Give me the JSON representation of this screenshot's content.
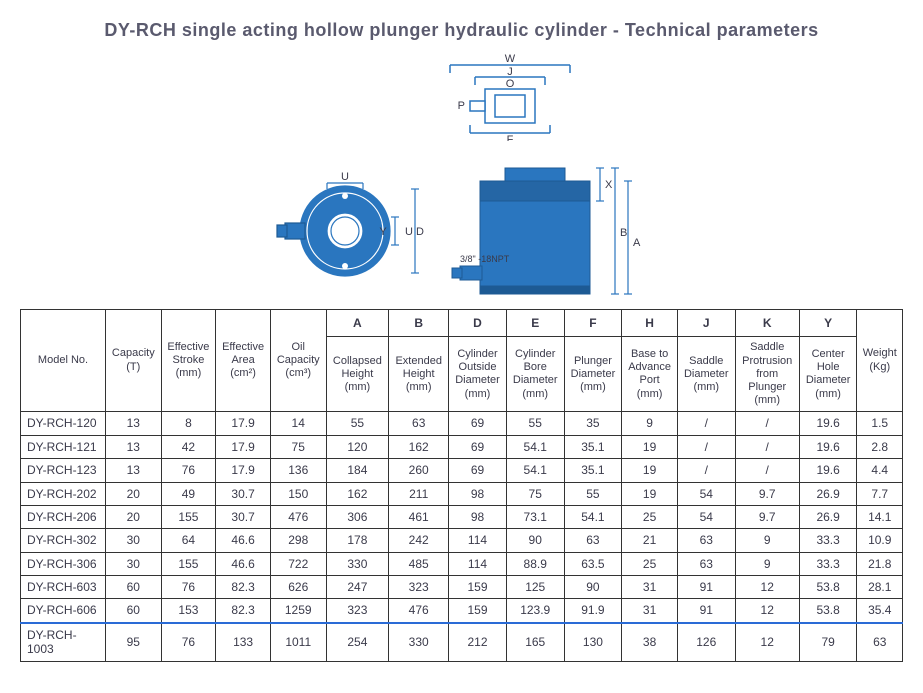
{
  "title": "DY-RCH single acting hollow plunger hydraulic cylinder - Technical parameters",
  "diagram": {
    "body_color": "#2a76bf",
    "line_color": "#2a76bf",
    "dim_color": "#3a3a4a",
    "top_labels": {
      "W": "W",
      "J": "J",
      "O": "O",
      "P": "P"
    },
    "top_F": "F",
    "left_labels": {
      "U": "U",
      "Y": "Y",
      "UD": "U D"
    },
    "port_note": "3/8\" -18NPT",
    "side_labels": {
      "X": "X",
      "B": "B",
      "A": "A"
    }
  },
  "table": {
    "header_letters": [
      "A",
      "B",
      "D",
      "E",
      "F",
      "H",
      "J",
      "K",
      "Y"
    ],
    "cols": {
      "model": "Model No.",
      "capacity": "Capacity\n(T)",
      "stroke": "Effective\nStroke\n(mm)",
      "area": "Effective\nArea\n(cm²)",
      "oil": "Oil\nCapacity\n(cm³)",
      "A": "Collapsed\nHeight\n(mm)",
      "B": "Extended\nHeight\n(mm)",
      "D": "Cylinder\nOutside\nDiameter\n(mm)",
      "E": "Cylinder\nBore\nDiameter\n(mm)",
      "F": "Plunger\nDiameter\n(mm)",
      "H": "Base to\nAdvance\nPort\n(mm)",
      "J": "Saddle\nDiameter\n(mm)",
      "K": "Saddle\nProtrusion\nfrom\nPlunger\n(mm)",
      "Y": "Center\nHole\nDiameter\n(mm)",
      "weight": "Weight\n(Kg)"
    },
    "rows": [
      {
        "model": "DY-RCH-120",
        "cap": "13",
        "stroke": "8",
        "area": "17.9",
        "oil": "14",
        "A": "55",
        "B": "63",
        "D": "69",
        "E": "55",
        "F": "35",
        "H": "9",
        "J": "/",
        "K": "/",
        "Y": "19.6",
        "W": "1.5"
      },
      {
        "model": "DY-RCH-121",
        "cap": "13",
        "stroke": "42",
        "area": "17.9",
        "oil": "75",
        "A": "120",
        "B": "162",
        "D": "69",
        "E": "54.1",
        "F": "35.1",
        "H": "19",
        "J": "/",
        "K": "/",
        "Y": "19.6",
        "W": "2.8"
      },
      {
        "model": "DY-RCH-123",
        "cap": "13",
        "stroke": "76",
        "area": "17.9",
        "oil": "136",
        "A": "184",
        "B": "260",
        "D": "69",
        "E": "54.1",
        "F": "35.1",
        "H": "19",
        "J": "/",
        "K": "/",
        "Y": "19.6",
        "W": "4.4"
      },
      {
        "model": "DY-RCH-202",
        "cap": "20",
        "stroke": "49",
        "area": "30.7",
        "oil": "150",
        "A": "162",
        "B": "211",
        "D": "98",
        "E": "75",
        "F": "55",
        "H": "19",
        "J": "54",
        "K": "9.7",
        "Y": "26.9",
        "W": "7.7"
      },
      {
        "model": "DY-RCH-206",
        "cap": "20",
        "stroke": "155",
        "area": "30.7",
        "oil": "476",
        "A": "306",
        "B": "461",
        "D": "98",
        "E": "73.1",
        "F": "54.1",
        "H": "25",
        "J": "54",
        "K": "9.7",
        "Y": "26.9",
        "W": "14.1"
      },
      {
        "model": "DY-RCH-302",
        "cap": "30",
        "stroke": "64",
        "area": "46.6",
        "oil": "298",
        "A": "178",
        "B": "242",
        "D": "114",
        "E": "90",
        "F": "63",
        "H": "21",
        "J": "63",
        "K": "9",
        "Y": "33.3",
        "W": "10.9"
      },
      {
        "model": "DY-RCH-306",
        "cap": "30",
        "stroke": "155",
        "area": "46.6",
        "oil": "722",
        "A": "330",
        "B": "485",
        "D": "114",
        "E": "88.9",
        "F": "63.5",
        "H": "25",
        "J": "63",
        "K": "9",
        "Y": "33.3",
        "W": "21.8"
      },
      {
        "model": "DY-RCH-603",
        "cap": "60",
        "stroke": "76",
        "area": "82.3",
        "oil": "626",
        "A": "247",
        "B": "323",
        "D": "159",
        "E": "125",
        "F": "90",
        "H": "31",
        "J": "91",
        "K": "12",
        "Y": "53.8",
        "W": "28.1"
      },
      {
        "model": "DY-RCH-606",
        "cap": "60",
        "stroke": "153",
        "area": "82.3",
        "oil": "1259",
        "A": "323",
        "B": "476",
        "D": "159",
        "E": "123.9",
        "F": "91.9",
        "H": "31",
        "J": "91",
        "K": "12",
        "Y": "53.8",
        "W": "35.4",
        "blueline": true
      },
      {
        "model": "DY-RCH-1003",
        "cap": "95",
        "stroke": "76",
        "area": "133",
        "oil": "1011",
        "A": "254",
        "B": "330",
        "D": "212",
        "E": "165",
        "F": "130",
        "H": "38",
        "J": "126",
        "K": "12",
        "Y": "79",
        "W": "63"
      }
    ]
  }
}
